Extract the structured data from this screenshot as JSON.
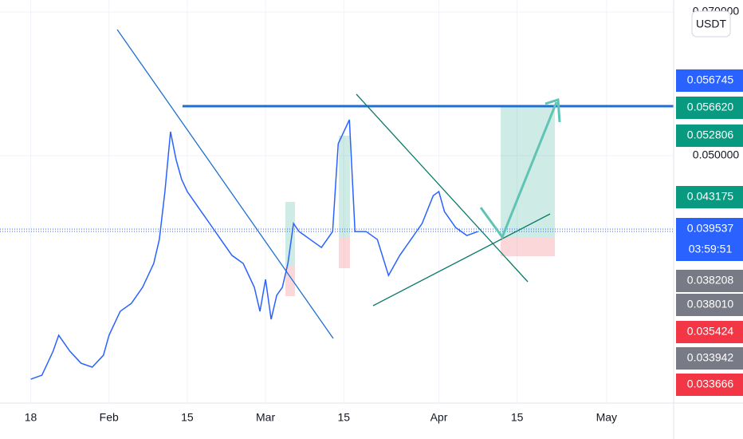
{
  "chart_data": {
    "type": "line",
    "x": [
      0,
      2,
      4,
      5,
      7,
      9,
      11,
      13,
      14,
      16,
      18,
      20,
      22,
      23,
      24,
      25,
      26,
      27,
      28,
      30,
      32,
      34,
      36,
      38,
      40,
      41,
      42,
      43,
      44,
      45,
      46,
      47,
      48,
      50,
      52,
      54,
      55,
      57,
      58,
      60,
      62,
      64,
      66,
      68,
      70,
      72,
      73,
      74,
      76,
      78,
      80
    ],
    "series": [
      {
        "color": "#2962ff",
        "values": [
          0.01889,
          0.01944,
          0.02278,
          0.025,
          0.02278,
          0.02111,
          0.02056,
          0.02222,
          0.025,
          0.02833,
          0.02944,
          0.03167,
          0.035,
          0.03833,
          0.045,
          0.05333,
          0.04944,
          0.04667,
          0.045,
          0.04278,
          0.04056,
          0.03833,
          0.03611,
          0.035,
          0.03167,
          0.02833,
          0.03278,
          0.02722,
          0.03056,
          0.03167,
          0.035,
          0.04056,
          0.03944,
          0.03833,
          0.03722,
          0.03944,
          0.05167,
          0.055,
          0.03944,
          0.03944,
          0.03833,
          0.03333,
          0.03611,
          0.03833,
          0.04056,
          0.04444,
          0.045,
          0.04222,
          0.04,
          0.03889,
          0.03944
        ]
      }
    ],
    "xlim": [
      -5.5,
      115
    ],
    "xticks": [
      {
        "value": 0,
        "label": "18"
      },
      {
        "value": 14,
        "label": "Feb"
      },
      {
        "value": 28,
        "label": "15"
      },
      {
        "value": 42,
        "label": "Mar"
      },
      {
        "value": 56,
        "label": "15"
      },
      {
        "value": 73,
        "label": "Apr"
      },
      {
        "value": 87,
        "label": "15"
      },
      {
        "value": 103,
        "label": "May"
      }
    ],
    "ylim": [
      0.01556,
      0.07167
    ],
    "yticks": [
      {
        "value": 0.05,
        "label": "0.050000"
      },
      {
        "value": 0.07,
        "label": "0.070000"
      }
    ],
    "grid": true
  },
  "currency_button": "USDT",
  "price_tags": [
    {
      "label": "0.056745",
      "color": "#2962ff"
    },
    {
      "label": "0.056620",
      "color": "#089981"
    },
    {
      "label": "0.052806",
      "color": "#089981"
    },
    {
      "label": "0.043175",
      "color": "#089981"
    },
    {
      "label": "0.039537",
      "color": "#2962ff"
    },
    {
      "label": "03:59:51",
      "color": "#2962ff"
    },
    {
      "label": "0.038208",
      "color": "#787b86"
    },
    {
      "label": "0.038010",
      "color": "#787b86"
    },
    {
      "label": "0.035424",
      "color": "#f23645"
    },
    {
      "label": "0.033942",
      "color": "#787b86"
    },
    {
      "label": "0.033666",
      "color": "#f23645"
    }
  ]
}
